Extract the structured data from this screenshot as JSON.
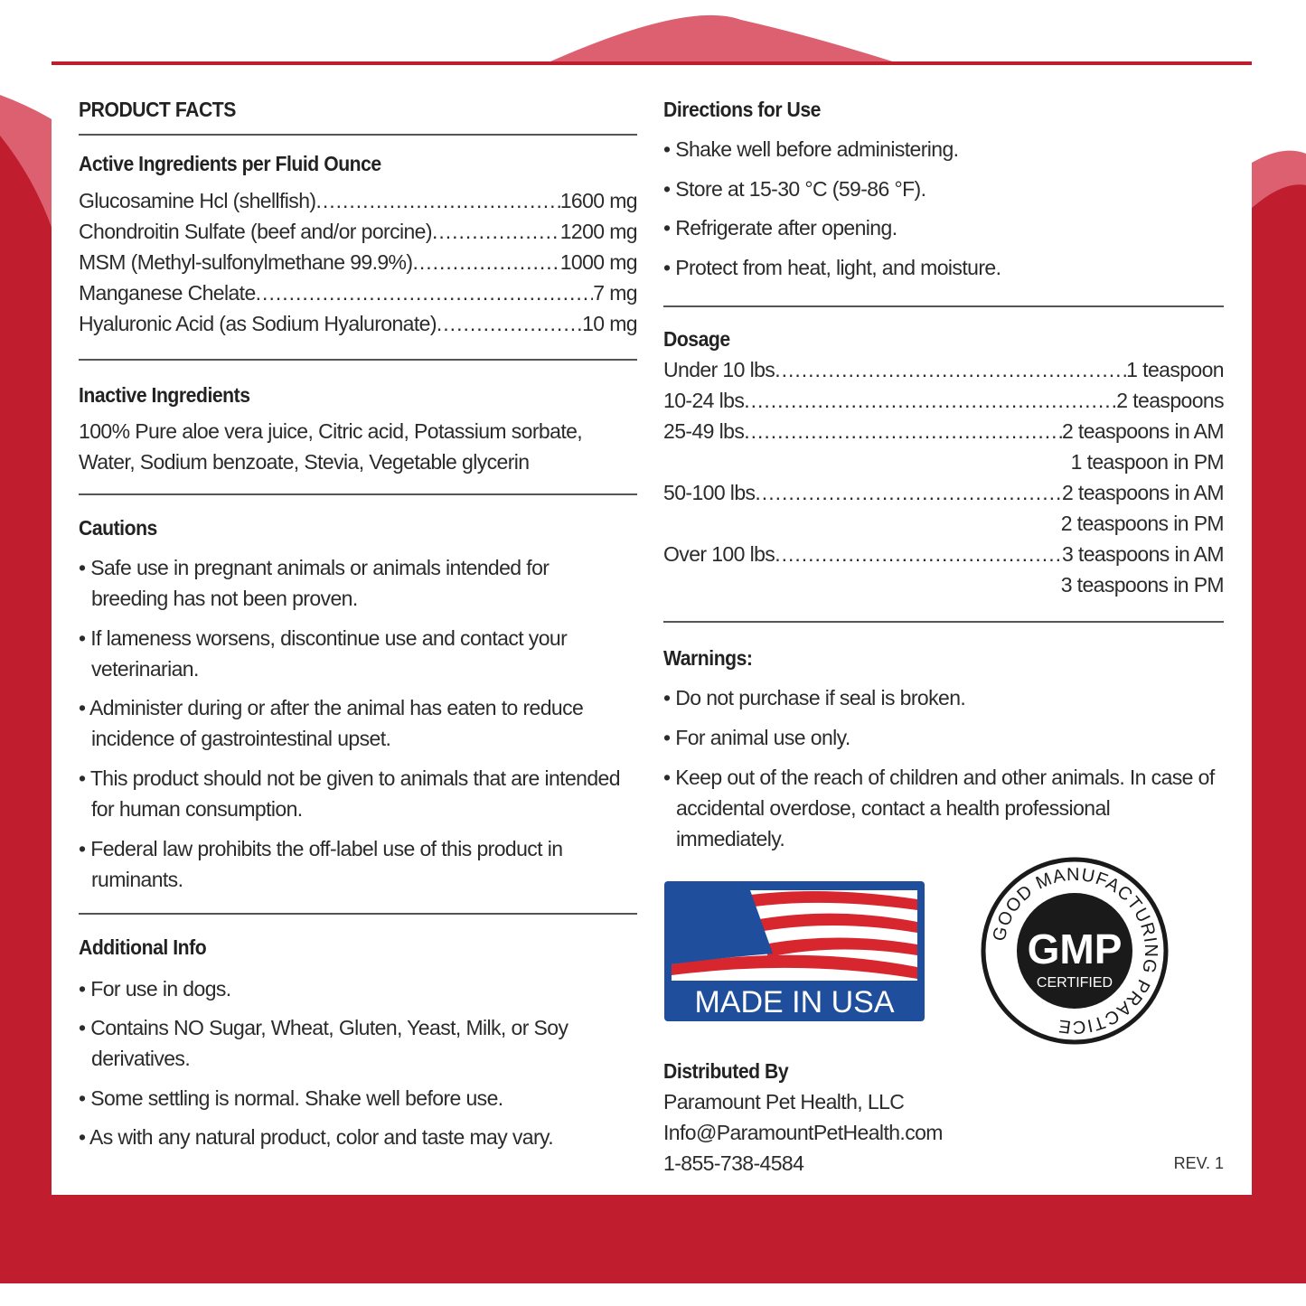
{
  "colors": {
    "brand_red": "#c01d2e",
    "light_red": "#dc6070",
    "flag_blue": "#1f4e9c"
  },
  "left": {
    "title": "PRODUCT FACTS",
    "active": {
      "heading": "Active Ingredients per Fluid Ounce",
      "rows": [
        {
          "name": "Glucosamine Hcl (shellfish)",
          "value": "1600 mg"
        },
        {
          "name": "Chondroitin Sulfate (beef and/or porcine)",
          "value": "1200 mg"
        },
        {
          "name": "MSM (Methyl-sulfonylmethane 99.9%)",
          "value": "1000 mg"
        },
        {
          "name": "Manganese Chelate",
          "value": "7 mg"
        },
        {
          "name": "Hyaluronic Acid (as Sodium Hyaluronate)",
          "value": "10 mg"
        }
      ]
    },
    "inactive": {
      "heading": "Inactive Ingredients",
      "lines": [
        "100% Pure aloe vera juice, Citric acid, Potassium sorbate,",
        "Water, Sodium benzoate, Stevia, Vegetable glycerin"
      ]
    },
    "cautions": {
      "heading": "Cautions",
      "items": [
        [
          "Safe use in pregnant animals or animals intended for",
          "breeding has not been proven."
        ],
        [
          "If lameness worsens, discontinue use and contact your",
          "veterinarian."
        ],
        [
          "Administer during or after the animal has eaten to reduce",
          "incidence of gastrointestinal upset."
        ],
        [
          "This product should not be given to animals that are intended",
          "for human consumption."
        ],
        [
          "Federal law prohibits the off-label use of this product in",
          "ruminants."
        ]
      ]
    },
    "additional": {
      "heading": "Additional Info",
      "items": [
        [
          "For use in dogs."
        ],
        [
          "Contains NO Sugar, Wheat, Gluten, Yeast, Milk, or Soy",
          "derivatives."
        ],
        [
          "Some settling is normal. Shake well before use."
        ],
        [
          "As with any natural product, color and taste may vary."
        ]
      ]
    }
  },
  "right": {
    "directions": {
      "heading": "Directions for Use",
      "items": [
        "Shake well before administering.",
        "Store at 15-30 °C (59-86 °F).",
        "Refrigerate after opening.",
        "Protect from heat, light, and moisture."
      ]
    },
    "dosage": {
      "heading": "Dosage",
      "rows": [
        {
          "weight": "Under 10 lbs",
          "amount": "1 teaspoon"
        },
        {
          "weight": "10-24 lbs",
          "amount": "2 teaspoons"
        },
        {
          "weight": "25-49 lbs",
          "amount": "2 teaspoons in AM",
          "amount2": "1 teaspoon in PM"
        },
        {
          "weight": "50-100 lbs",
          "amount": "2 teaspoons in AM",
          "amount2": "2 teaspoons in PM"
        },
        {
          "weight": "Over 100 lbs",
          "amount": "3 teaspoons in AM",
          "amount2": "3 teaspoons in PM"
        }
      ]
    },
    "warnings": {
      "heading": "Warnings:",
      "items": [
        [
          "Do not purchase if seal is broken."
        ],
        [
          "For animal use only."
        ],
        [
          "Keep out of the reach of children and other animals. In case of",
          "accidental overdose, contact a health professional",
          "immediately."
        ]
      ]
    },
    "badges": {
      "made_in_usa": "MADE IN USA",
      "gmp": "GMP",
      "gmp_sub": "CERTIFIED",
      "gmp_ring": "GOOD MANUFACTURING PRACTICE"
    },
    "distributor": {
      "heading": "Distributed By",
      "lines": [
        "Paramount Pet Health, LLC",
        "Info@ParamountPetHealth.com",
        "1-855-738-4584"
      ]
    },
    "rev": "REV. 1"
  }
}
